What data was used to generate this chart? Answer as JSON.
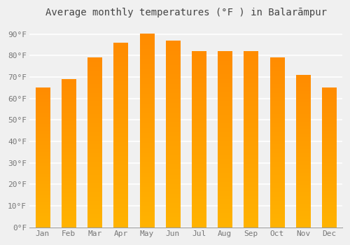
{
  "title": "Average monthly temperatures (°F ) in Balarāmpur",
  "months": [
    "Jan",
    "Feb",
    "Mar",
    "Apr",
    "May",
    "Jun",
    "Jul",
    "Aug",
    "Sep",
    "Oct",
    "Nov",
    "Dec"
  ],
  "values": [
    65,
    69,
    79,
    86,
    90,
    87,
    82,
    82,
    82,
    79,
    71,
    65
  ],
  "bar_color_bottom": "#FFB300",
  "bar_color_top": "#FF8C00",
  "ylim": [
    0,
    95
  ],
  "yticks": [
    0,
    10,
    20,
    30,
    40,
    50,
    60,
    70,
    80,
    90
  ],
  "ytick_labels": [
    "0°F",
    "10°F",
    "20°F",
    "30°F",
    "40°F",
    "50°F",
    "60°F",
    "70°F",
    "80°F",
    "90°F"
  ],
  "bg_color": "#f0f0f0",
  "grid_color": "#ffffff",
  "title_fontsize": 10,
  "tick_fontsize": 8,
  "bar_width": 0.55
}
